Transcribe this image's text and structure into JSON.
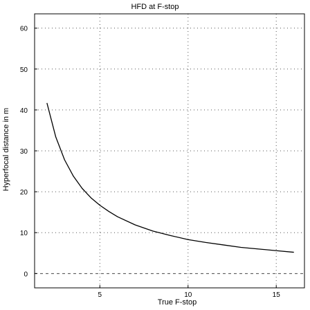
{
  "chart_data": {
    "type": "line",
    "title": "HFD at F-stop",
    "xlabel": "True F-stop",
    "ylabel": "Hyperfocal distance in m",
    "xlim": [
      1.3,
      16.6
    ],
    "ylim": [
      -3.5,
      63.5
    ],
    "xticks": [
      5,
      10,
      15
    ],
    "yticks": [
      0,
      10,
      20,
      30,
      40,
      50,
      60
    ],
    "x_tick_labels": [
      "5",
      "10",
      "15"
    ],
    "y_tick_labels": [
      "0",
      "10",
      "20",
      "30",
      "40",
      "50",
      "60"
    ],
    "grid": true,
    "reference_lines": [
      {
        "y": 0,
        "style": "dashed"
      }
    ],
    "series": [
      {
        "color": "#000000",
        "x": [
          2,
          2.5,
          3,
          3.5,
          4,
          4.5,
          5,
          5.5,
          6,
          7,
          8,
          9,
          10,
          11,
          12,
          13,
          14,
          15,
          16
        ],
        "y": [
          41.7,
          33.4,
          27.8,
          23.8,
          20.8,
          18.5,
          16.7,
          15.2,
          13.9,
          11.9,
          10.4,
          9.3,
          8.3,
          7.6,
          7.0,
          6.4,
          6.0,
          5.6,
          5.2
        ]
      }
    ]
  }
}
